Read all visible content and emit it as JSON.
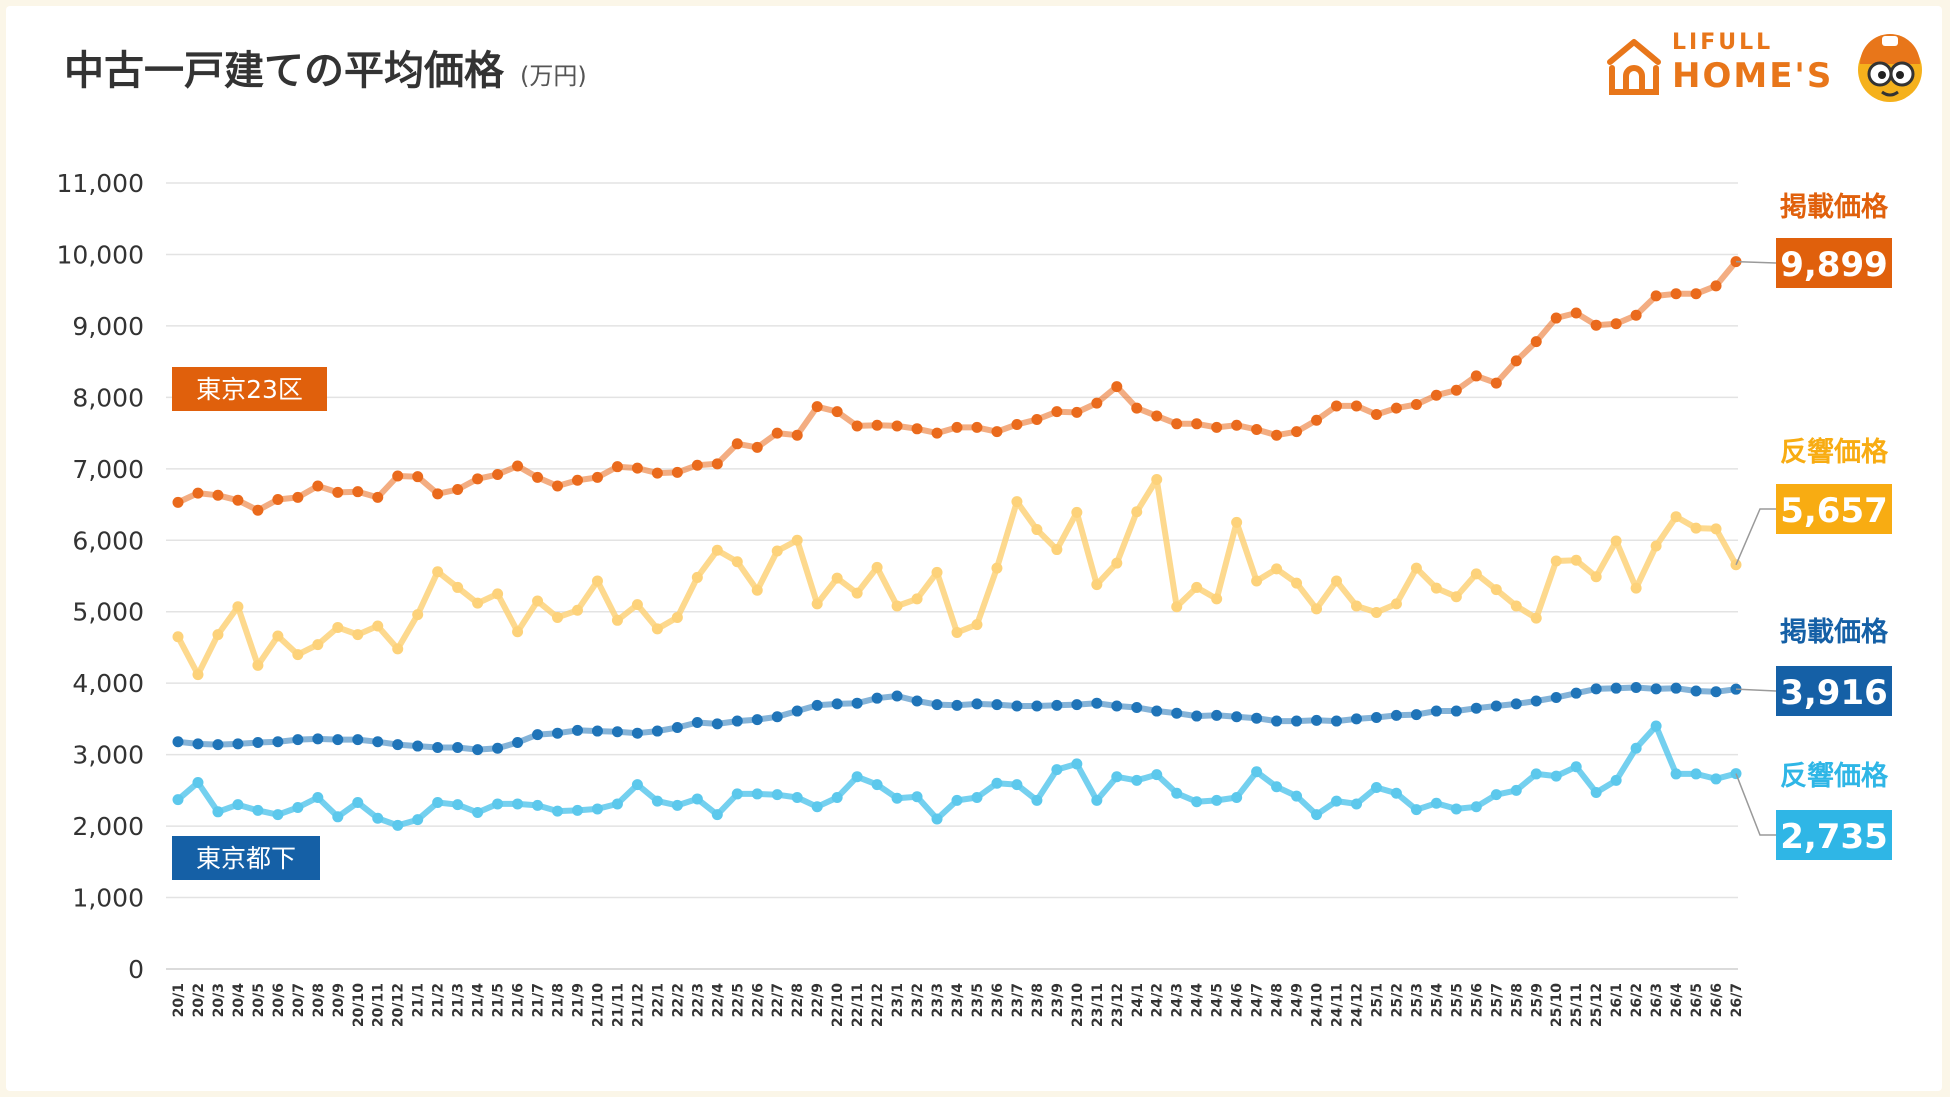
{
  "header": {
    "title": "中古一戸建ての平均価格",
    "unit": "(万円)"
  },
  "logo": {
    "line1": "LIFULL",
    "line2": "HOME'S",
    "house_icon": "house-icon",
    "mascot_icon": "mascot-icon"
  },
  "colors": {
    "tokyo23_listing": "#ea6a1c",
    "tokyo23_response": "#fdd27a",
    "suburb_listing": "#1f74b8",
    "suburb_response": "#5cc8ec",
    "label_orange": "#e0600c",
    "label_yellow": "#f8ac12",
    "label_blue": "#1560a6",
    "label_cyan": "#2fb6e6",
    "grid": "#e3e3e3"
  },
  "chart_data": {
    "type": "line",
    "ylim": [
      0,
      11000
    ],
    "yticks": [
      "0",
      "1,000",
      "2,000",
      "3,000",
      "4,000",
      "5,000",
      "6,000",
      "7,000",
      "8,000",
      "9,000",
      "10,000",
      "11,000"
    ],
    "grid": true,
    "x": [
      "20/1",
      "20/2",
      "20/3",
      "20/4",
      "20/5",
      "20/6",
      "20/7",
      "20/8",
      "20/9",
      "20/10",
      "20/11",
      "20/12",
      "21/1",
      "21/2",
      "21/3",
      "21/4",
      "21/5",
      "21/6",
      "21/7",
      "21/8",
      "21/9",
      "21/10",
      "21/11",
      "21/12",
      "22/1",
      "22/2",
      "22/3",
      "22/4",
      "22/5",
      "22/6",
      "22/7",
      "22/8",
      "22/9",
      "22/10",
      "22/11",
      "22/12",
      "23/1",
      "23/2",
      "23/3",
      "23/4",
      "23/5",
      "23/6",
      "23/7",
      "23/8",
      "23/9",
      "23/10",
      "23/11",
      "23/12",
      "24/1",
      "24/2",
      "24/3",
      "24/4",
      "24/5",
      "24/6",
      "24/7",
      "24/8",
      "24/9",
      "24/10",
      "24/11",
      "24/12",
      "25/1",
      "25/2",
      "25/3",
      "25/4",
      "25/5",
      "25/6",
      "25/7",
      "25/8",
      "25/9",
      "25/10",
      "25/11",
      "25/12",
      "26/1",
      "26/2",
      "26/3",
      "26/4",
      "26/5",
      "26/6",
      "26/7"
    ],
    "groups": [
      {
        "name": "東京23区",
        "position": "upper-left"
      },
      {
        "name": "東京都下",
        "position": "lower-left"
      }
    ],
    "series": [
      {
        "name": "掲載価格",
        "group": "東京23区",
        "color_key": "tokyo23_listing",
        "label_color_key": "label_orange",
        "end_label": "9,899",
        "values": [
          6530,
          6660,
          6630,
          6560,
          6420,
          6570,
          6600,
          6760,
          6670,
          6680,
          6600,
          6900,
          6890,
          6650,
          6710,
          6860,
          6920,
          7040,
          6880,
          6760,
          6840,
          6880,
          7030,
          7010,
          6940,
          6950,
          7050,
          7070,
          7350,
          7300,
          7500,
          7470,
          7870,
          7800,
          7600,
          7610,
          7600,
          7560,
          7500,
          7580,
          7580,
          7520,
          7620,
          7690,
          7800,
          7790,
          7920,
          8150,
          7850,
          7740,
          7630,
          7630,
          7580,
          7610,
          7550,
          7470,
          7520,
          7680,
          7880,
          7880,
          7760,
          7850,
          7900,
          8030,
          8100,
          8300,
          8200,
          8510,
          8780,
          9110,
          9180,
          9010,
          9030,
          9150,
          9420,
          9450,
          9450,
          9560,
          9899
        ]
      },
      {
        "name": "反響価格",
        "group": "東京23区",
        "color_key": "tokyo23_response",
        "label_color_key": "label_yellow",
        "end_label": "5,657",
        "values": [
          4650,
          4120,
          4680,
          5070,
          4250,
          4660,
          4400,
          4540,
          4780,
          4680,
          4800,
          4480,
          4960,
          5560,
          5340,
          5120,
          5250,
          4720,
          5150,
          4920,
          5020,
          5430,
          4880,
          5100,
          4760,
          4920,
          5480,
          5860,
          5700,
          5300,
          5850,
          6000,
          5110,
          5470,
          5260,
          5620,
          5080,
          5180,
          5550,
          4710,
          4820,
          5610,
          6540,
          6150,
          5870,
          6390,
          5380,
          5680,
          6400,
          6850,
          5070,
          5340,
          5180,
          6250,
          5430,
          5600,
          5400,
          5040,
          5430,
          5080,
          4990,
          5110,
          5610,
          5330,
          5210,
          5530,
          5310,
          5080,
          4910,
          5710,
          5720,
          5490,
          5990,
          5330,
          5920,
          6330,
          6170,
          6160,
          5657
        ]
      },
      {
        "name": "掲載価格",
        "group": "東京都下",
        "color_key": "suburb_listing",
        "label_color_key": "label_blue",
        "end_label": "3,916",
        "values": [
          3180,
          3150,
          3140,
          3150,
          3170,
          3180,
          3210,
          3220,
          3210,
          3210,
          3180,
          3140,
          3120,
          3100,
          3100,
          3070,
          3090,
          3170,
          3280,
          3300,
          3340,
          3330,
          3320,
          3300,
          3330,
          3380,
          3450,
          3430,
          3470,
          3490,
          3530,
          3610,
          3690,
          3710,
          3720,
          3790,
          3820,
          3750,
          3700,
          3690,
          3710,
          3700,
          3680,
          3680,
          3690,
          3700,
          3720,
          3680,
          3660,
          3610,
          3580,
          3540,
          3550,
          3530,
          3510,
          3470,
          3470,
          3480,
          3470,
          3500,
          3520,
          3550,
          3560,
          3610,
          3610,
          3650,
          3680,
          3710,
          3750,
          3800,
          3860,
          3920,
          3930,
          3940,
          3920,
          3930,
          3890,
          3880,
          3916
        ]
      },
      {
        "name": "反響価格",
        "group": "東京都下",
        "color_key": "suburb_response",
        "label_color_key": "label_cyan",
        "end_label": "2,735",
        "values": [
          2370,
          2610,
          2200,
          2300,
          2220,
          2160,
          2260,
          2400,
          2130,
          2330,
          2110,
          2010,
          2090,
          2330,
          2300,
          2190,
          2310,
          2310,
          2290,
          2210,
          2220,
          2240,
          2310,
          2580,
          2350,
          2290,
          2380,
          2160,
          2450,
          2450,
          2440,
          2400,
          2270,
          2400,
          2690,
          2580,
          2390,
          2410,
          2100,
          2360,
          2400,
          2600,
          2580,
          2360,
          2790,
          2870,
          2360,
          2690,
          2640,
          2720,
          2460,
          2340,
          2360,
          2400,
          2760,
          2550,
          2420,
          2160,
          2350,
          2310,
          2540,
          2460,
          2230,
          2320,
          2240,
          2270,
          2440,
          2500,
          2730,
          2700,
          2830,
          2470,
          2640,
          3090,
          3400,
          2730,
          2730,
          2660,
          2735
        ]
      }
    ]
  }
}
